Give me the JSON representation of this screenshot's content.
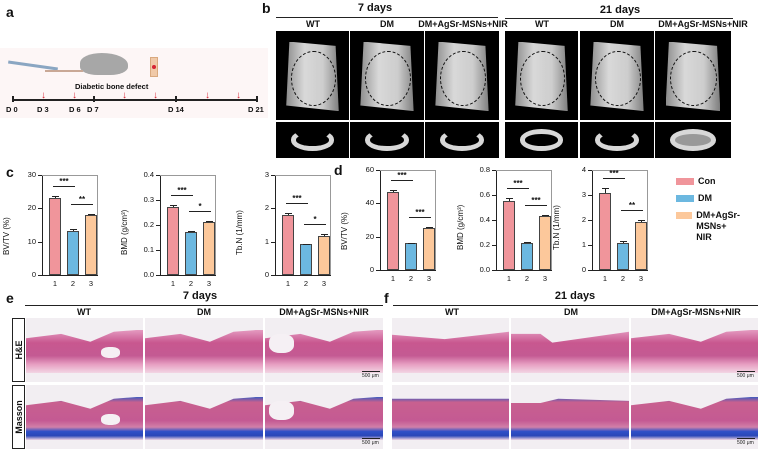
{
  "panels": {
    "a": {
      "label": "a",
      "title": "Diabetic bone defect",
      "days": [
        "D 0",
        "D 3",
        "D 6",
        "D 7",
        "D 14",
        "D 21"
      ],
      "injection_marker_color": "#d62433"
    },
    "b": {
      "label": "b",
      "timepoints": [
        "7 days",
        "21 days"
      ],
      "groups": [
        "WT",
        "DM",
        "DM+AgSr-MSNs+NIR"
      ]
    },
    "c": {
      "label": "c"
    },
    "d": {
      "label": "d"
    },
    "e": {
      "label": "e",
      "timepoint": "7 days",
      "groups": [
        "WT",
        "DM",
        "DM+AgSr-MSNs+NIR"
      ],
      "rows": [
        "H&E",
        "Masson"
      ],
      "scale": "500 μm"
    },
    "f": {
      "label": "f",
      "timepoint": "21 days",
      "groups": [
        "WT",
        "DM",
        "DM+AgSr-MSNs+NIR"
      ],
      "rows": [
        "H&E",
        "Masson"
      ],
      "scale": "500 μm"
    }
  },
  "legend": [
    {
      "label": "Con",
      "color": "#f0959b"
    },
    {
      "label": "DM",
      "color": "#6cb8e0"
    },
    {
      "label": "DM+AgSr-MSNs+\nNIR",
      "color": "#fcc89b"
    }
  ],
  "chart_data": [
    {
      "panel": "c",
      "timepoint": "7 days",
      "type": "bar",
      "categories": [
        "1",
        "2",
        "3"
      ],
      "values": [
        23.2,
        13.3,
        17.9
      ],
      "errors": [
        0.5,
        0.4,
        0.5
      ],
      "ylabel": "BV/TV (%)",
      "ylim": [
        0,
        30
      ],
      "yticks": [
        0,
        10,
        20,
        30
      ],
      "significance": [
        {
          "pair": [
            1,
            2
          ],
          "label": "***"
        },
        {
          "pair": [
            2,
            3
          ],
          "label": "**"
        }
      ]
    },
    {
      "panel": "c",
      "timepoint": "7 days",
      "type": "bar",
      "categories": [
        "1",
        "2",
        "3"
      ],
      "values": [
        0.272,
        0.171,
        0.211
      ],
      "errors": [
        0.01,
        0.007,
        0.006
      ],
      "ylabel": "BMD (g/cm³)",
      "ylim": [
        0,
        0.4
      ],
      "yticks": [
        "0.0",
        "0.1",
        "0.2",
        "0.3",
        "0.4"
      ],
      "significance": [
        {
          "pair": [
            1,
            2
          ],
          "label": "***"
        },
        {
          "pair": [
            2,
            3
          ],
          "label": "*"
        }
      ]
    },
    {
      "panel": "c",
      "timepoint": "7 days",
      "type": "bar",
      "categories": [
        "1",
        "2",
        "3"
      ],
      "values": [
        1.8,
        0.92,
        1.16
      ],
      "errors": [
        0.05,
        0.02,
        0.06
      ],
      "ylabel": "Tb.N (1/mm)",
      "ylim": [
        0,
        3
      ],
      "yticks": [
        0,
        1,
        2,
        3
      ],
      "significance": [
        {
          "pair": [
            1,
            2
          ],
          "label": "***"
        },
        {
          "pair": [
            2,
            3
          ],
          "label": "*"
        }
      ]
    },
    {
      "panel": "d",
      "timepoint": "21 days",
      "type": "bar",
      "categories": [
        "1",
        "2",
        "3"
      ],
      "values": [
        47,
        16,
        25.3
      ],
      "errors": [
        0.8,
        0.4,
        0.4
      ],
      "ylabel": "BV/TV (%)",
      "ylim": [
        0,
        60
      ],
      "yticks": [
        0,
        20,
        40,
        60
      ],
      "significance": [
        {
          "pair": [
            1,
            2
          ],
          "label": "***"
        },
        {
          "pair": [
            2,
            3
          ],
          "label": "***"
        }
      ]
    },
    {
      "panel": "d",
      "timepoint": "21 days",
      "type": "bar",
      "categories": [
        "1",
        "2",
        "3"
      ],
      "values": [
        0.555,
        0.213,
        0.433
      ],
      "errors": [
        0.025,
        0.008,
        0.008
      ],
      "ylabel": "BMD (g/cm³)",
      "ylim": [
        0,
        0.8
      ],
      "yticks": [
        "0.0",
        "0.2",
        "0.4",
        "0.6",
        "0.8"
      ],
      "significance": [
        {
          "pair": [
            1,
            2
          ],
          "label": "***"
        },
        {
          "pair": [
            2,
            3
          ],
          "label": "***"
        }
      ]
    },
    {
      "panel": "d",
      "timepoint": "21 days",
      "type": "bar",
      "categories": [
        "1",
        "2",
        "3"
      ],
      "values": [
        3.1,
        1.1,
        1.92
      ],
      "errors": [
        0.2,
        0.05,
        0.07
      ],
      "ylabel": "Tb.N (1/mm)",
      "ylim": [
        0,
        4
      ],
      "yticks": [
        0,
        1,
        2,
        3,
        4
      ],
      "significance": [
        {
          "pair": [
            1,
            2
          ],
          "label": "***"
        },
        {
          "pair": [
            2,
            3
          ],
          "label": "**"
        }
      ]
    }
  ]
}
